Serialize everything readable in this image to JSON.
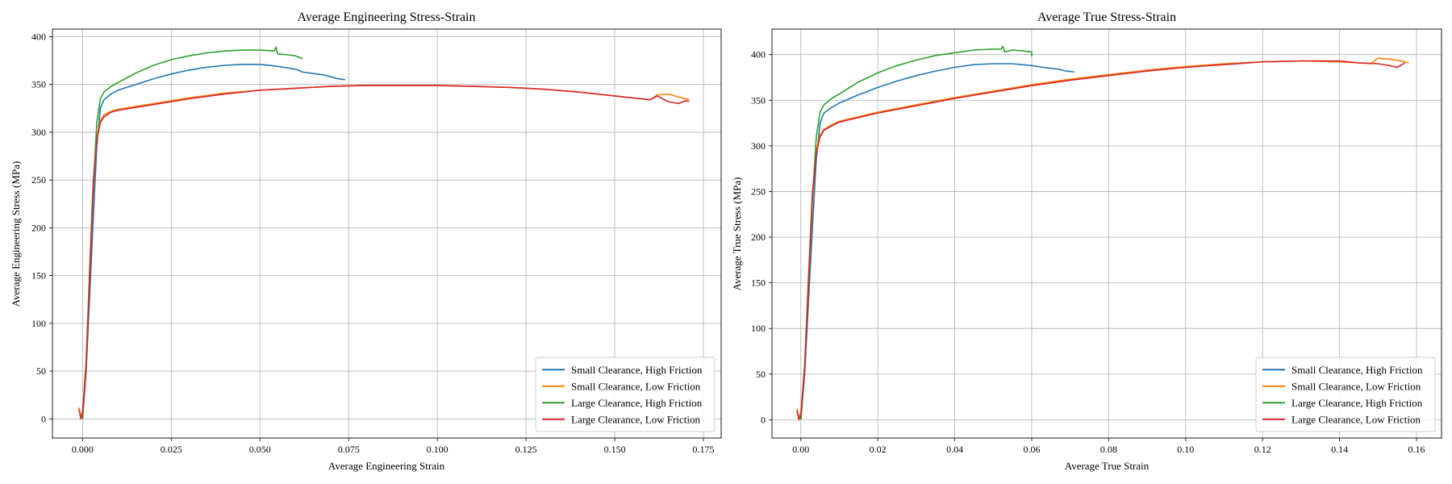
{
  "chart_data": [
    {
      "type": "line",
      "title": "Average Engineering Stress-Strain",
      "xlabel": "Average Engineering Strain",
      "ylabel": "Average Engineering Stress (MPa)",
      "xlim": [
        -0.0085,
        0.18
      ],
      "ylim": [
        -20,
        408
      ],
      "xticks": [
        0.0,
        0.025,
        0.05,
        0.075,
        0.1,
        0.125,
        0.15,
        0.175
      ],
      "xtick_labels": [
        "0.000",
        "0.025",
        "0.050",
        "0.075",
        "0.100",
        "0.125",
        "0.150",
        "0.175"
      ],
      "yticks": [
        0,
        50,
        100,
        150,
        200,
        250,
        300,
        350,
        400
      ],
      "ytick_labels": [
        "0",
        "50",
        "100",
        "150",
        "200",
        "250",
        "300",
        "350",
        "400"
      ],
      "grid": true,
      "legend_position": "bottom-right",
      "series": [
        {
          "name": "Small Clearance, High Friction",
          "color": "#1f77b4",
          "x": [
            0.0,
            0.001,
            0.002,
            0.003,
            0.004,
            0.005,
            0.006,
            0.008,
            0.01,
            0.015,
            0.02,
            0.025,
            0.03,
            0.035,
            0.04,
            0.045,
            0.05,
            0.055,
            0.06,
            0.062,
            0.064,
            0.066,
            0.068,
            0.07,
            0.072,
            0.074
          ],
          "y": [
            0,
            50,
            130,
            210,
            285,
            325,
            334,
            340,
            344,
            350,
            356,
            361,
            365,
            368,
            370,
            371,
            371,
            369,
            366,
            363,
            362,
            361,
            360,
            358,
            356,
            355
          ]
        },
        {
          "name": "Small Clearance, Low Friction",
          "color": "#ff7f0e",
          "x": [
            -0.001,
            -0.0005,
            0.0,
            0.001,
            0.002,
            0.003,
            0.004,
            0.005,
            0.006,
            0.008,
            0.01,
            0.02,
            0.03,
            0.04,
            0.05,
            0.06,
            0.07,
            0.08,
            0.09,
            0.1,
            0.11,
            0.12,
            0.13,
            0.14,
            0.15,
            0.155,
            0.16,
            0.162,
            0.165,
            0.168,
            0.17,
            0.171
          ],
          "y": [
            12,
            2,
            8,
            60,
            160,
            250,
            295,
            312,
            318,
            322,
            324,
            330,
            336,
            341,
            344,
            346,
            348,
            349,
            349,
            349,
            348,
            347,
            345,
            342,
            338,
            336,
            334,
            339,
            340,
            337,
            335,
            334
          ]
        },
        {
          "name": "Large Clearance, High Friction",
          "color": "#2ca02c",
          "x": [
            0.0,
            0.001,
            0.002,
            0.003,
            0.004,
            0.005,
            0.006,
            0.008,
            0.01,
            0.015,
            0.02,
            0.025,
            0.03,
            0.035,
            0.04,
            0.045,
            0.05,
            0.054,
            0.0545,
            0.055,
            0.058,
            0.06,
            0.062
          ],
          "y": [
            0,
            60,
            150,
            240,
            310,
            335,
            342,
            348,
            352,
            362,
            370,
            376,
            380,
            383,
            385,
            386,
            386,
            385,
            389,
            382,
            381,
            380,
            377
          ]
        },
        {
          "name": "Large Clearance, Low Friction",
          "color": "#d62728",
          "x": [
            -0.001,
            -0.0005,
            0.0,
            0.001,
            0.002,
            0.003,
            0.004,
            0.005,
            0.006,
            0.008,
            0.01,
            0.02,
            0.03,
            0.04,
            0.05,
            0.06,
            0.07,
            0.08,
            0.09,
            0.1,
            0.11,
            0.12,
            0.13,
            0.14,
            0.15,
            0.16,
            0.162,
            0.165,
            0.168,
            0.17,
            0.171
          ],
          "y": [
            10,
            0,
            6,
            55,
            150,
            245,
            292,
            310,
            316,
            321,
            323,
            329,
            335,
            340,
            344,
            346,
            348,
            349,
            349,
            349,
            348,
            347,
            345,
            342,
            338,
            334,
            338,
            332,
            330,
            333,
            332
          ]
        }
      ]
    },
    {
      "type": "line",
      "title": "Average True Stress-Strain",
      "xlabel": "Average True Strain",
      "ylabel": "Average True Stress (MPa)",
      "xlim": [
        -0.0075,
        0.1665
      ],
      "ylim": [
        -20,
        428
      ],
      "xticks": [
        0.0,
        0.02,
        0.04,
        0.06,
        0.08,
        0.1,
        0.12,
        0.14,
        0.16
      ],
      "xtick_labels": [
        "0.00",
        "0.02",
        "0.04",
        "0.06",
        "0.08",
        "0.10",
        "0.12",
        "0.14",
        "0.16"
      ],
      "yticks": [
        0,
        50,
        100,
        150,
        200,
        250,
        300,
        350,
        400
      ],
      "ytick_labels": [
        "0",
        "50",
        "100",
        "150",
        "200",
        "250",
        "300",
        "350",
        "400"
      ],
      "grid": true,
      "legend_position": "bottom-right",
      "series": [
        {
          "name": "Small Clearance, High Friction",
          "color": "#1f77b4",
          "x": [
            0.0,
            0.001,
            0.002,
            0.003,
            0.004,
            0.005,
            0.006,
            0.008,
            0.01,
            0.015,
            0.02,
            0.025,
            0.03,
            0.035,
            0.04,
            0.045,
            0.05,
            0.055,
            0.06,
            0.063,
            0.065,
            0.067,
            0.069,
            0.071
          ],
          "y": [
            0,
            50,
            130,
            210,
            285,
            325,
            336,
            342,
            347,
            356,
            364,
            371,
            377,
            382,
            386,
            389,
            390,
            390,
            388,
            386,
            385,
            384,
            382,
            381
          ]
        },
        {
          "name": "Small Clearance, Low Friction",
          "color": "#ff7f0e",
          "x": [
            -0.001,
            -0.0005,
            0.0,
            0.001,
            0.002,
            0.003,
            0.004,
            0.005,
            0.006,
            0.008,
            0.01,
            0.02,
            0.03,
            0.04,
            0.05,
            0.06,
            0.07,
            0.08,
            0.09,
            0.1,
            0.11,
            0.12,
            0.13,
            0.14,
            0.145,
            0.148,
            0.15,
            0.153,
            0.156,
            0.158
          ],
          "y": [
            12,
            2,
            8,
            60,
            160,
            250,
            295,
            312,
            318,
            323,
            327,
            337,
            345,
            353,
            360,
            367,
            373,
            378,
            383,
            387,
            390,
            392,
            393,
            392,
            391,
            390,
            396,
            395,
            393,
            391
          ]
        },
        {
          "name": "Large Clearance, High Friction",
          "color": "#2ca02c",
          "x": [
            0.0,
            0.001,
            0.002,
            0.003,
            0.004,
            0.005,
            0.006,
            0.008,
            0.01,
            0.015,
            0.02,
            0.025,
            0.03,
            0.035,
            0.04,
            0.045,
            0.05,
            0.052,
            0.0525,
            0.053,
            0.055,
            0.058,
            0.06,
            0.06
          ],
          "y": [
            0,
            60,
            150,
            240,
            310,
            337,
            345,
            352,
            357,
            370,
            380,
            388,
            394,
            399,
            402,
            405,
            406,
            406,
            409,
            403,
            405,
            404,
            403,
            398
          ]
        },
        {
          "name": "Large Clearance, Low Friction",
          "color": "#d62728",
          "x": [
            -0.001,
            -0.0005,
            0.0,
            0.001,
            0.002,
            0.003,
            0.004,
            0.005,
            0.006,
            0.008,
            0.01,
            0.02,
            0.03,
            0.04,
            0.05,
            0.06,
            0.07,
            0.08,
            0.09,
            0.1,
            0.11,
            0.12,
            0.13,
            0.14,
            0.145,
            0.15,
            0.153,
            0.155,
            0.157
          ],
          "y": [
            10,
            0,
            6,
            55,
            150,
            245,
            292,
            310,
            317,
            322,
            326,
            336,
            344,
            352,
            359,
            366,
            372,
            377,
            382,
            386,
            389,
            392,
            393,
            393,
            391,
            390,
            388,
            386,
            391
          ]
        }
      ]
    }
  ]
}
